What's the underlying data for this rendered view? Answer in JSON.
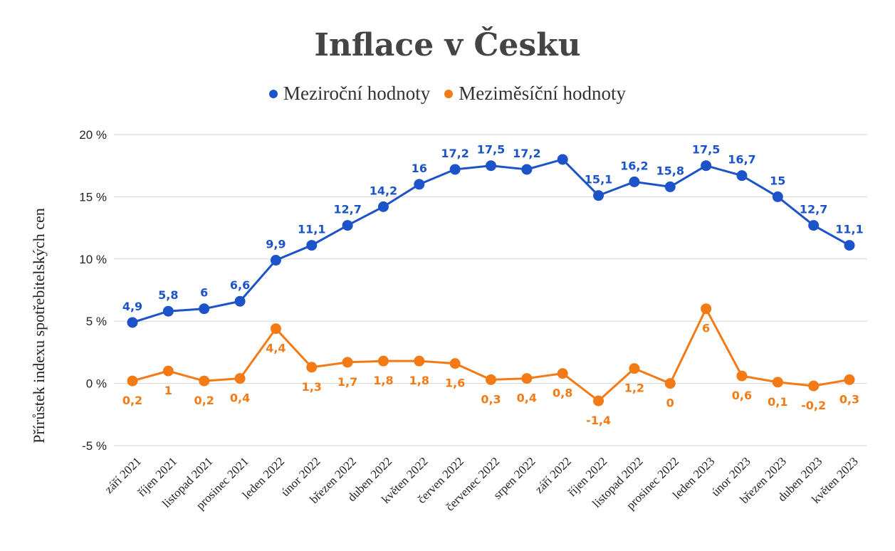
{
  "chart_data": {
    "type": "line",
    "title": "Inflace v Česku",
    "ylabel": "Přírůstek indexu spotřebitelských cen",
    "xlabel": "",
    "ylim": [
      -5,
      20
    ],
    "yticks": [
      -5,
      0,
      5,
      10,
      15,
      20
    ],
    "ytick_labels": [
      "-5 %",
      "0 %",
      "5 %",
      "10 %",
      "15 %",
      "20 %"
    ],
    "grid": true,
    "legend": "top-center",
    "categories": [
      "září 2021",
      "říjen 2021",
      "listopad 2021",
      "prosinec 2021",
      "leden 2022",
      "únor 2022",
      "březen 2022",
      "duben 2022",
      "květen 2022",
      "červen 2022",
      "červenec 2022",
      "srpen 2022",
      "září 2022",
      "říjen 2022",
      "listopad 2022",
      "prosinec 2022",
      "leden 2023",
      "únor 2023",
      "březen 2023",
      "duben 2023",
      "květen 2023"
    ],
    "series": [
      {
        "name": "Meziroční hodnoty",
        "color": "#1c53c8",
        "label_position": "above",
        "values": [
          4.9,
          5.8,
          6,
          6.6,
          9.9,
          11.1,
          12.7,
          14.2,
          16,
          17.2,
          17.5,
          17.2,
          18,
          15.1,
          16.2,
          15.8,
          17.5,
          16.7,
          15,
          12.7,
          11.1
        ],
        "labels": [
          "4,9",
          "5,8",
          "6",
          "6,6",
          "9,9",
          "11,1",
          "12,7",
          "14,2",
          "16",
          "17,2",
          "17,5",
          "17,2",
          "",
          "15,1",
          "16,2",
          "15,8",
          "17,5",
          "16,7",
          "15",
          "12,7",
          "11,1"
        ]
      },
      {
        "name": "Meziměsíční hodnoty",
        "color": "#f47a15",
        "label_position": "below",
        "values": [
          0.2,
          1,
          0.2,
          0.4,
          4.4,
          1.3,
          1.7,
          1.8,
          1.8,
          1.6,
          0.3,
          0.4,
          0.8,
          -1.4,
          1.2,
          0,
          6,
          0.6,
          0.1,
          -0.2,
          0.3
        ],
        "labels": [
          "0,2",
          "1",
          "0,2",
          "0,4",
          "4,4",
          "1,3",
          "1,7",
          "1,8",
          "1,8",
          "1,6",
          "0,3",
          "0,4",
          "0,8",
          "-1,4",
          "1,2",
          "0",
          "6",
          "0,6",
          "0,1",
          "-0,2",
          "0,3"
        ]
      }
    ]
  }
}
